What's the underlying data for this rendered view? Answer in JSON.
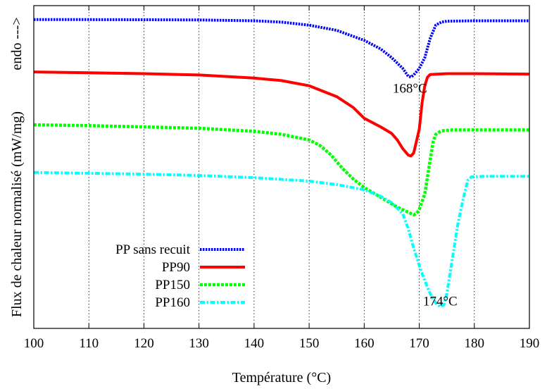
{
  "chart_data": {
    "type": "line",
    "title": "",
    "xlabel": "Température (°C)",
    "ylabel": "Flux de chaleur normalisé (mW/mg)",
    "ylabel_arrow": "endo --->",
    "xlim": [
      100,
      190
    ],
    "xticks": [
      100,
      110,
      120,
      130,
      140,
      150,
      160,
      170,
      180,
      190
    ],
    "grid": "vertical-dotted",
    "legend_position": "bottom-left",
    "series": [
      {
        "name": "PP sans recuit",
        "color": "#0000ff",
        "dash": "dotted",
        "points": [
          [
            100,
            -0.07
          ],
          [
            110,
            -0.072
          ],
          [
            120,
            -0.075
          ],
          [
            130,
            -0.08
          ],
          [
            140,
            -0.1
          ],
          [
            145,
            -0.13
          ],
          [
            150,
            -0.2
          ],
          [
            155,
            -0.32
          ],
          [
            160,
            -0.55
          ],
          [
            163,
            -0.75
          ],
          [
            165,
            -0.95
          ],
          [
            167,
            -1.2
          ],
          [
            168,
            -1.38
          ],
          [
            168.5,
            -1.4
          ],
          [
            169,
            -1.35
          ],
          [
            170,
            -1.2
          ],
          [
            171,
            -0.95
          ],
          [
            172,
            -0.5
          ],
          [
            173,
            -0.2
          ],
          [
            174,
            -0.13
          ],
          [
            175,
            -0.11
          ],
          [
            180,
            -0.1
          ],
          [
            190,
            -0.1
          ]
        ]
      },
      {
        "name": "PP90",
        "color": "#ff0000",
        "dash": "solid",
        "points": [
          [
            100,
            -1.28
          ],
          [
            110,
            -1.3
          ],
          [
            120,
            -1.32
          ],
          [
            130,
            -1.35
          ],
          [
            140,
            -1.42
          ],
          [
            145,
            -1.48
          ],
          [
            150,
            -1.6
          ],
          [
            155,
            -1.85
          ],
          [
            158,
            -2.1
          ],
          [
            160,
            -2.35
          ],
          [
            163,
            -2.55
          ],
          [
            165,
            -2.7
          ],
          [
            166,
            -2.85
          ],
          [
            167,
            -3.05
          ],
          [
            168,
            -3.2
          ],
          [
            168.5,
            -3.22
          ],
          [
            169,
            -3.15
          ],
          [
            170,
            -2.6
          ],
          [
            170.5,
            -2.0
          ],
          [
            171,
            -1.6
          ],
          [
            171.5,
            -1.4
          ],
          [
            172,
            -1.34
          ],
          [
            175,
            -1.32
          ],
          [
            180,
            -1.32
          ],
          [
            190,
            -1.33
          ]
        ]
      },
      {
        "name": "PP150",
        "color": "#00ff00",
        "dash": "dashed",
        "points": [
          [
            100,
            -2.5
          ],
          [
            110,
            -2.52
          ],
          [
            120,
            -2.55
          ],
          [
            130,
            -2.58
          ],
          [
            140,
            -2.65
          ],
          [
            145,
            -2.72
          ],
          [
            150,
            -2.85
          ],
          [
            152,
            -2.98
          ],
          [
            154,
            -3.2
          ],
          [
            156,
            -3.5
          ],
          [
            158,
            -3.75
          ],
          [
            160,
            -3.95
          ],
          [
            162,
            -4.1
          ],
          [
            164,
            -4.25
          ],
          [
            166,
            -4.4
          ],
          [
            168,
            -4.52
          ],
          [
            169,
            -4.58
          ],
          [
            169.5,
            -4.55
          ],
          [
            170,
            -4.45
          ],
          [
            171,
            -4.1
          ],
          [
            172,
            -3.3
          ],
          [
            172.5,
            -2.9
          ],
          [
            173,
            -2.72
          ],
          [
            174,
            -2.64
          ],
          [
            176,
            -2.62
          ],
          [
            180,
            -2.62
          ],
          [
            190,
            -2.62
          ]
        ]
      },
      {
        "name": "PP160",
        "color": "#00ffff",
        "dash": "dash-dot",
        "points": [
          [
            100,
            -3.6
          ],
          [
            110,
            -3.62
          ],
          [
            120,
            -3.64
          ],
          [
            130,
            -3.67
          ],
          [
            140,
            -3.72
          ],
          [
            150,
            -3.8
          ],
          [
            155,
            -3.88
          ],
          [
            160,
            -4.0
          ],
          [
            163,
            -4.15
          ],
          [
            165,
            -4.3
          ],
          [
            167,
            -4.55
          ],
          [
            168,
            -4.9
          ],
          [
            169,
            -5.35
          ],
          [
            170,
            -5.75
          ],
          [
            171,
            -6.1
          ],
          [
            172,
            -6.4
          ],
          [
            173,
            -6.62
          ],
          [
            173.8,
            -6.7
          ],
          [
            174.5,
            -6.65
          ],
          [
            175,
            -6.4
          ],
          [
            176,
            -5.6
          ],
          [
            177,
            -4.8
          ],
          [
            178,
            -4.2
          ],
          [
            178.8,
            -3.78
          ],
          [
            179.5,
            -3.7
          ],
          [
            182,
            -3.69
          ],
          [
            190,
            -3.69
          ]
        ]
      }
    ],
    "annotations": [
      {
        "text": "168°C",
        "x": 168.3,
        "y": -1.4
      },
      {
        "text": "174°C",
        "x": 173.8,
        "y": -6.7
      }
    ]
  }
}
